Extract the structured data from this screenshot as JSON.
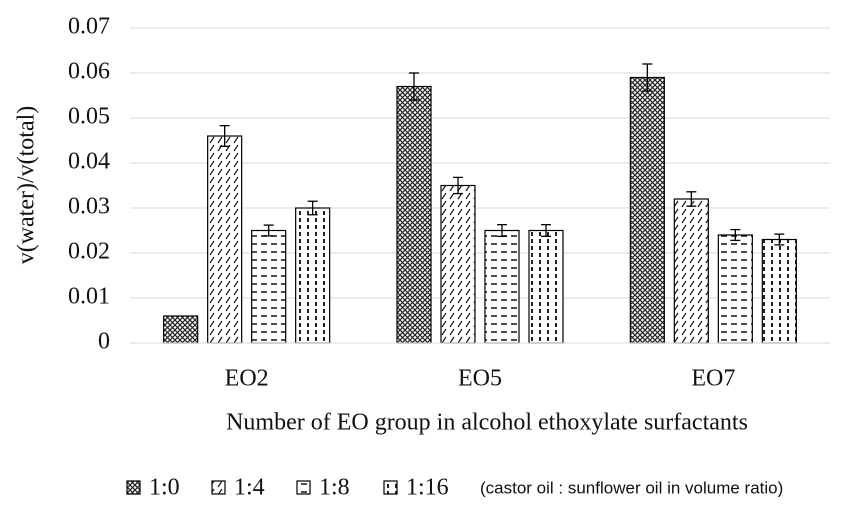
{
  "chart_data": {
    "type": "bar",
    "y_label": "v(water)/v(total)",
    "x_label": "Number of EO group in alcohol ethoxylate surfactants",
    "legend_note": "(castor oil : sunflower oil in volume ratio)",
    "categories": [
      "EO2",
      "EO5",
      "EO7"
    ],
    "series": [
      {
        "name": "1:0",
        "color": "#000000",
        "pattern": "crosshatch",
        "values": [
          0.006,
          0.057,
          0.059
        ],
        "errors": [
          0,
          0.003,
          0.003
        ]
      },
      {
        "name": "1:4",
        "color": "#000000",
        "pattern": "diagonal",
        "values": [
          0.046,
          0.035,
          0.032
        ],
        "errors": [
          0.0023,
          0.0018,
          0.0016
        ]
      },
      {
        "name": "1:8",
        "color": "#000000",
        "pattern": "dashes",
        "values": [
          0.025,
          0.025,
          0.024
        ],
        "errors": [
          0.0012,
          0.0013,
          0.0012
        ]
      },
      {
        "name": "1:16",
        "color": "#000000",
        "pattern": "dots",
        "values": [
          0.03,
          0.025,
          0.023
        ],
        "errors": [
          0.0015,
          0.0013,
          0.0012
        ]
      }
    ],
    "ylim": [
      0,
      0.07
    ],
    "yticks": [
      0,
      0.01,
      0.02,
      0.03,
      0.04,
      0.05,
      0.06,
      0.07
    ],
    "grid": true,
    "legend": "bottom"
  }
}
